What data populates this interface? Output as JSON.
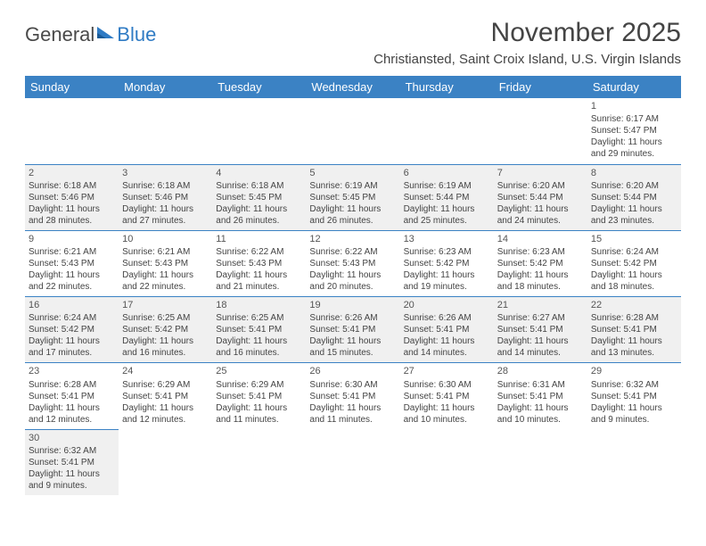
{
  "logo": {
    "text_dark": "General",
    "text_blue": "Blue"
  },
  "title": "November 2025",
  "location": "Christiansted, Saint Croix Island, U.S. Virgin Islands",
  "colors": {
    "header_bg": "#3b82c4",
    "header_text": "#ffffff",
    "border": "#3b82c4",
    "shaded_bg": "#f0f0f0",
    "body_text": "#444444",
    "logo_dark": "#4a4a4a",
    "logo_blue": "#2f7bc4"
  },
  "day_headers": [
    "Sunday",
    "Monday",
    "Tuesday",
    "Wednesday",
    "Thursday",
    "Friday",
    "Saturday"
  ],
  "weeks": [
    [
      null,
      null,
      null,
      null,
      null,
      null,
      {
        "n": "1",
        "sr": "Sunrise: 6:17 AM",
        "ss": "Sunset: 5:47 PM",
        "d1": "Daylight: 11 hours",
        "d2": "and 29 minutes."
      }
    ],
    [
      {
        "n": "2",
        "sr": "Sunrise: 6:18 AM",
        "ss": "Sunset: 5:46 PM",
        "d1": "Daylight: 11 hours",
        "d2": "and 28 minutes."
      },
      {
        "n": "3",
        "sr": "Sunrise: 6:18 AM",
        "ss": "Sunset: 5:46 PM",
        "d1": "Daylight: 11 hours",
        "d2": "and 27 minutes."
      },
      {
        "n": "4",
        "sr": "Sunrise: 6:18 AM",
        "ss": "Sunset: 5:45 PM",
        "d1": "Daylight: 11 hours",
        "d2": "and 26 minutes."
      },
      {
        "n": "5",
        "sr": "Sunrise: 6:19 AM",
        "ss": "Sunset: 5:45 PM",
        "d1": "Daylight: 11 hours",
        "d2": "and 26 minutes."
      },
      {
        "n": "6",
        "sr": "Sunrise: 6:19 AM",
        "ss": "Sunset: 5:44 PM",
        "d1": "Daylight: 11 hours",
        "d2": "and 25 minutes."
      },
      {
        "n": "7",
        "sr": "Sunrise: 6:20 AM",
        "ss": "Sunset: 5:44 PM",
        "d1": "Daylight: 11 hours",
        "d2": "and 24 minutes."
      },
      {
        "n": "8",
        "sr": "Sunrise: 6:20 AM",
        "ss": "Sunset: 5:44 PM",
        "d1": "Daylight: 11 hours",
        "d2": "and 23 minutes."
      }
    ],
    [
      {
        "n": "9",
        "sr": "Sunrise: 6:21 AM",
        "ss": "Sunset: 5:43 PM",
        "d1": "Daylight: 11 hours",
        "d2": "and 22 minutes."
      },
      {
        "n": "10",
        "sr": "Sunrise: 6:21 AM",
        "ss": "Sunset: 5:43 PM",
        "d1": "Daylight: 11 hours",
        "d2": "and 22 minutes."
      },
      {
        "n": "11",
        "sr": "Sunrise: 6:22 AM",
        "ss": "Sunset: 5:43 PM",
        "d1": "Daylight: 11 hours",
        "d2": "and 21 minutes."
      },
      {
        "n": "12",
        "sr": "Sunrise: 6:22 AM",
        "ss": "Sunset: 5:43 PM",
        "d1": "Daylight: 11 hours",
        "d2": "and 20 minutes."
      },
      {
        "n": "13",
        "sr": "Sunrise: 6:23 AM",
        "ss": "Sunset: 5:42 PM",
        "d1": "Daylight: 11 hours",
        "d2": "and 19 minutes."
      },
      {
        "n": "14",
        "sr": "Sunrise: 6:23 AM",
        "ss": "Sunset: 5:42 PM",
        "d1": "Daylight: 11 hours",
        "d2": "and 18 minutes."
      },
      {
        "n": "15",
        "sr": "Sunrise: 6:24 AM",
        "ss": "Sunset: 5:42 PM",
        "d1": "Daylight: 11 hours",
        "d2": "and 18 minutes."
      }
    ],
    [
      {
        "n": "16",
        "sr": "Sunrise: 6:24 AM",
        "ss": "Sunset: 5:42 PM",
        "d1": "Daylight: 11 hours",
        "d2": "and 17 minutes."
      },
      {
        "n": "17",
        "sr": "Sunrise: 6:25 AM",
        "ss": "Sunset: 5:42 PM",
        "d1": "Daylight: 11 hours",
        "d2": "and 16 minutes."
      },
      {
        "n": "18",
        "sr": "Sunrise: 6:25 AM",
        "ss": "Sunset: 5:41 PM",
        "d1": "Daylight: 11 hours",
        "d2": "and 16 minutes."
      },
      {
        "n": "19",
        "sr": "Sunrise: 6:26 AM",
        "ss": "Sunset: 5:41 PM",
        "d1": "Daylight: 11 hours",
        "d2": "and 15 minutes."
      },
      {
        "n": "20",
        "sr": "Sunrise: 6:26 AM",
        "ss": "Sunset: 5:41 PM",
        "d1": "Daylight: 11 hours",
        "d2": "and 14 minutes."
      },
      {
        "n": "21",
        "sr": "Sunrise: 6:27 AM",
        "ss": "Sunset: 5:41 PM",
        "d1": "Daylight: 11 hours",
        "d2": "and 14 minutes."
      },
      {
        "n": "22",
        "sr": "Sunrise: 6:28 AM",
        "ss": "Sunset: 5:41 PM",
        "d1": "Daylight: 11 hours",
        "d2": "and 13 minutes."
      }
    ],
    [
      {
        "n": "23",
        "sr": "Sunrise: 6:28 AM",
        "ss": "Sunset: 5:41 PM",
        "d1": "Daylight: 11 hours",
        "d2": "and 12 minutes."
      },
      {
        "n": "24",
        "sr": "Sunrise: 6:29 AM",
        "ss": "Sunset: 5:41 PM",
        "d1": "Daylight: 11 hours",
        "d2": "and 12 minutes."
      },
      {
        "n": "25",
        "sr": "Sunrise: 6:29 AM",
        "ss": "Sunset: 5:41 PM",
        "d1": "Daylight: 11 hours",
        "d2": "and 11 minutes."
      },
      {
        "n": "26",
        "sr": "Sunrise: 6:30 AM",
        "ss": "Sunset: 5:41 PM",
        "d1": "Daylight: 11 hours",
        "d2": "and 11 minutes."
      },
      {
        "n": "27",
        "sr": "Sunrise: 6:30 AM",
        "ss": "Sunset: 5:41 PM",
        "d1": "Daylight: 11 hours",
        "d2": "and 10 minutes."
      },
      {
        "n": "28",
        "sr": "Sunrise: 6:31 AM",
        "ss": "Sunset: 5:41 PM",
        "d1": "Daylight: 11 hours",
        "d2": "and 10 minutes."
      },
      {
        "n": "29",
        "sr": "Sunrise: 6:32 AM",
        "ss": "Sunset: 5:41 PM",
        "d1": "Daylight: 11 hours",
        "d2": "and 9 minutes."
      }
    ],
    [
      {
        "n": "30",
        "sr": "Sunrise: 6:32 AM",
        "ss": "Sunset: 5:41 PM",
        "d1": "Daylight: 11 hours",
        "d2": "and 9 minutes."
      },
      null,
      null,
      null,
      null,
      null,
      null
    ]
  ]
}
